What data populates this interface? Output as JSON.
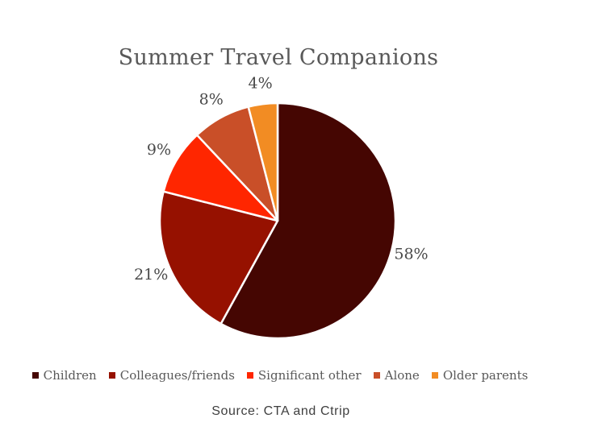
{
  "title": "Summer Travel Companions",
  "source_note": "Source: CTA and Ctrip",
  "colors": {
    "title_gray": "#595959",
    "data_label_gray": "#4a4a4a",
    "legend_text_gray": "#595959",
    "source_text": "#3f3f3f",
    "background": "#ffffff",
    "slice_separator": "#ffffff"
  },
  "chart_data": {
    "type": "pie",
    "title": "Summer Travel Companions",
    "start_angle_deg": 0,
    "direction": "clockwise",
    "legend_position": "bottom",
    "source_note": "Source: CTA and Ctrip",
    "slices": [
      {
        "label": "Children",
        "value_pct": 58,
        "data_label": "58%",
        "color": "#450602"
      },
      {
        "label": "Colleagues/friends",
        "value_pct": 21,
        "data_label": "21%",
        "color": "#961100"
      },
      {
        "label": "Significant other",
        "value_pct": 9,
        "data_label": "9%",
        "color": "#ff2600"
      },
      {
        "label": "Alone",
        "value_pct": 8,
        "data_label": "8%",
        "color": "#c94f28"
      },
      {
        "label": "Older parents",
        "value_pct": 4,
        "data_label": "4%",
        "color": "#f28c23"
      }
    ]
  }
}
